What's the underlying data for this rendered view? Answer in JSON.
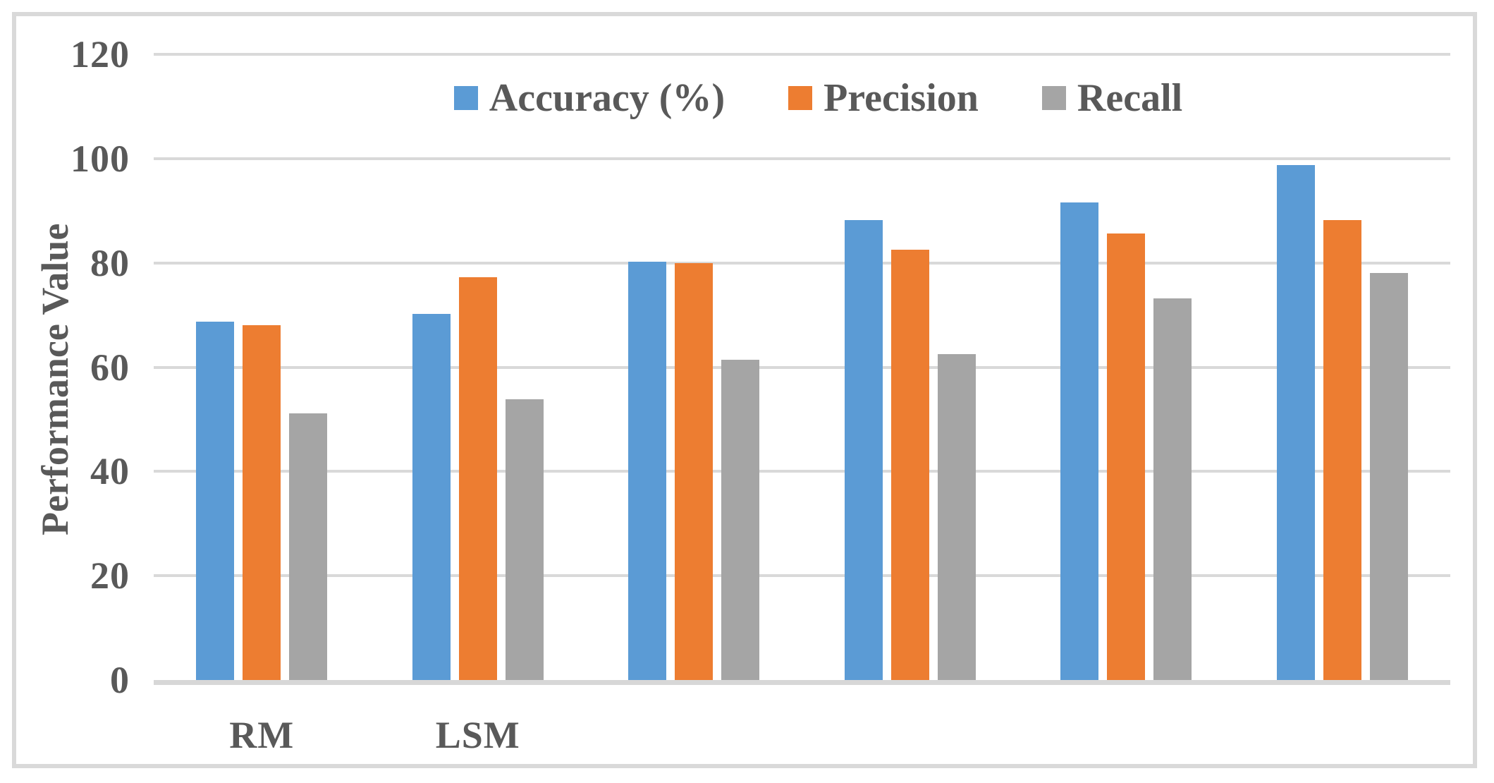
{
  "chart_data": {
    "type": "bar",
    "title": "",
    "ylabel": "Performance Value",
    "xlabel": "",
    "ylim": [
      0,
      120
    ],
    "ytick_step": 20,
    "yticks": [
      "0",
      "20",
      "40",
      "60",
      "80",
      "100",
      "120"
    ],
    "grid": true,
    "legend_position": "top-center",
    "categories": [
      "RM",
      "LSM",
      "",
      "",
      "",
      ""
    ],
    "series": [
      {
        "name": "Accuracy (%)",
        "color": "#5B9BD5",
        "values": [
          68.7,
          70.2,
          80.2,
          88.2,
          91.6,
          98.8
        ]
      },
      {
        "name": "Precision",
        "color": "#ED7D31",
        "values": [
          68.1,
          77.3,
          79.9,
          82.5,
          85.6,
          88.2
        ]
      },
      {
        "name": "Recall",
        "color": "#A5A5A5",
        "values": [
          51.1,
          53.8,
          61.4,
          62.5,
          73.2,
          78.0
        ]
      }
    ]
  },
  "style": {
    "gridline_color": "#D9D9D9",
    "axis_line_color": "#D7D7D7",
    "text_color": "#595959",
    "frame_border_color": "#D9D9D9",
    "background": "#FFFFFF"
  }
}
